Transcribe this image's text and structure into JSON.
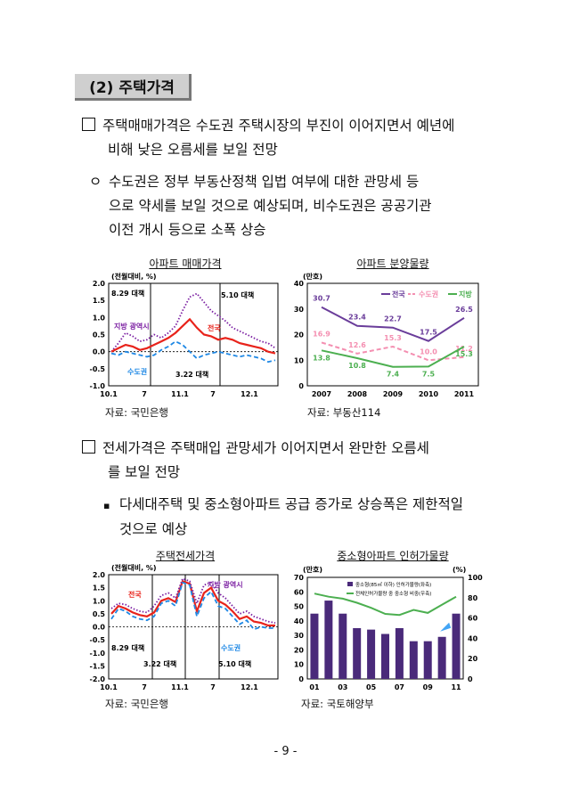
{
  "section_title": "(2) 주택가격",
  "b1": {
    "line1": "주택매매가격은 수도권 주택시장의 부진이 이어지면서 예년에",
    "line2": "비해 낮은 오름세를 보일 전망"
  },
  "b2": {
    "marker": "ㅇ",
    "line1": "수도권은 정부 부동산정책 입법 여부에 대한 관망세 등",
    "line2": "으로 약세를 보일 것으로 예상되며, 비수도권은 공공기관",
    "line3": "이전 개시 등으로 소폭 상승"
  },
  "b3": {
    "line1": "전세가격은 주택매입 관망세가 이어지면서 완만한 오름세",
    "line2": "를 보일 전망"
  },
  "b4": {
    "marker": "▪",
    "line1": "다세대주택 및 중소형아파트 공급 증가로 상승폭은 제한적일",
    "line2": "것으로 예상"
  },
  "page_number": "- 9 -",
  "chart_data": [
    {
      "type": "line",
      "title": "아파트 매매가격",
      "unit_label": "(전월대비, %)",
      "source": "자료: 국민은행",
      "ylim": [
        -1.0,
        2.0
      ],
      "yticks": [
        "2.0",
        "1.5",
        "1.0",
        "0.5",
        "0.0",
        "-0.5",
        "-1.0"
      ],
      "xticks": [
        "10.1",
        "7",
        "11.1",
        "7",
        "12.1"
      ],
      "annotations": [
        "8.29 대책",
        "5.10 대책",
        "3.22 대책"
      ],
      "series": [
        {
          "name": "지방 광역시",
          "color": "#7b1fa2",
          "style": "dotted",
          "values": [
            0.0,
            0.25,
            0.55,
            0.45,
            0.3,
            0.35,
            0.5,
            0.4,
            0.55,
            0.75,
            1.2,
            1.6,
            1.7,
            1.45,
            1.2,
            1.05,
            0.9,
            0.7,
            0.6,
            0.5,
            0.4,
            0.3,
            0.25,
            0.1
          ]
        },
        {
          "name": "전국",
          "color": "#e8231b",
          "style": "solid",
          "values": [
            0.0,
            0.1,
            0.2,
            0.15,
            0.05,
            0.1,
            0.2,
            0.3,
            0.4,
            0.55,
            0.75,
            0.95,
            0.7,
            0.5,
            0.45,
            0.35,
            0.4,
            0.35,
            0.25,
            0.2,
            0.15,
            0.1,
            0.0,
            -0.05
          ]
        },
        {
          "name": "수도권",
          "color": "#1e88e5",
          "style": "dashed",
          "values": [
            -0.05,
            -0.1,
            0.0,
            -0.05,
            -0.1,
            -0.15,
            -0.1,
            0.05,
            0.15,
            0.3,
            0.2,
            0.0,
            -0.2,
            -0.1,
            -0.05,
            0.0,
            -0.05,
            -0.1,
            -0.15,
            -0.1,
            -0.15,
            -0.2,
            -0.3,
            -0.25
          ]
        }
      ]
    },
    {
      "type": "line",
      "title": "아파트 분양물량",
      "unit_label": "(만호)",
      "source": "자료: 부동산114",
      "ylim": [
        0,
        40
      ],
      "yticks": [
        "40",
        "30",
        "20",
        "10",
        "0"
      ],
      "categories": [
        "2007",
        "2008",
        "2009",
        "2010",
        "2011"
      ],
      "series": [
        {
          "name": "전국",
          "color": "#6a3d9a",
          "style": "solid",
          "values": [
            30.7,
            23.4,
            22.7,
            17.5,
            26.5
          ],
          "labels": [
            "30.7",
            "23.4",
            "22.7",
            "17.5",
            "26.5"
          ]
        },
        {
          "name": "수도권",
          "color": "#f48fb1",
          "style": "dashed",
          "values": [
            16.9,
            12.6,
            15.3,
            10.0,
            11.2
          ],
          "labels": [
            "16.9",
            "12.6",
            "15.3",
            "10.0",
            "11.2"
          ]
        },
        {
          "name": "지방",
          "color": "#4caf50",
          "style": "solid",
          "values": [
            13.8,
            10.8,
            7.4,
            7.5,
            15.3
          ],
          "labels": [
            "13.8",
            "10.8",
            "7.4",
            "7.5",
            "15.3"
          ]
        }
      ]
    },
    {
      "type": "line",
      "title": "주택전세가격",
      "unit_label": "(전월대비, %)",
      "source": "자료: 국민은행",
      "ylim": [
        -2.0,
        2.0
      ],
      "yticks": [
        "2.0",
        "1.5",
        "1.0",
        "0.5",
        "0.0",
        "-0.5",
        "-1.0",
        "-1.5",
        "-2.0"
      ],
      "xticks": [
        "10.1",
        "7",
        "11.1",
        "7",
        "12.1"
      ],
      "annotations": [
        "8.29 대책",
        "3.22 대책",
        "5.10 대책"
      ],
      "series": [
        {
          "name": "전국",
          "color": "#e8231b",
          "style": "solid",
          "values": [
            0.5,
            0.8,
            0.7,
            0.55,
            0.45,
            0.4,
            0.55,
            1.0,
            1.1,
            0.95,
            1.75,
            1.65,
            0.6,
            1.3,
            1.5,
            1.0,
            0.85,
            0.6,
            0.3,
            0.4,
            0.2,
            0.15,
            0.05,
            0.05
          ]
        },
        {
          "name": "지방 광역시",
          "color": "#7b1fa2",
          "style": "dotted",
          "values": [
            0.7,
            0.9,
            0.85,
            0.7,
            0.6,
            0.55,
            0.8,
            1.2,
            1.3,
            1.1,
            1.85,
            1.75,
            0.9,
            1.6,
            1.7,
            1.3,
            1.1,
            0.8,
            0.5,
            0.6,
            0.4,
            0.3,
            0.2,
            0.15
          ]
        },
        {
          "name": "수도권",
          "color": "#1e88e5",
          "style": "dashed",
          "values": [
            0.3,
            0.7,
            0.6,
            0.4,
            0.3,
            0.25,
            0.4,
            0.9,
            1.0,
            0.8,
            1.7,
            1.6,
            0.4,
            1.1,
            1.35,
            0.8,
            0.7,
            0.4,
            0.1,
            0.25,
            -0.1,
            0.0,
            -0.05,
            -0.05
          ]
        }
      ]
    },
    {
      "type": "bar",
      "title": "중소형아파트 인허가물량",
      "unit_label": "(만호)",
      "unit_label_right": "(%)",
      "source": "자료: 국토해양부",
      "ylim": [
        0,
        70
      ],
      "ylim_right": [
        0,
        100
      ],
      "yticks": [
        "70",
        "60",
        "50",
        "40",
        "30",
        "20",
        "10",
        "0"
      ],
      "yticks_right": [
        "100",
        "80",
        "60",
        "40",
        "20",
        "0"
      ],
      "xticks": [
        "01",
        "03",
        "05",
        "07",
        "09",
        "11"
      ],
      "categories": [
        "01",
        "02",
        "03",
        "04",
        "05",
        "06",
        "07",
        "08",
        "09",
        "10",
        "11"
      ],
      "series": [
        {
          "name": "중소형(85㎡ 이하) 인허가물량(좌축)",
          "color": "#4a2a7a",
          "values": [
            45,
            54,
            45,
            35,
            34,
            31,
            35,
            26,
            26,
            29,
            45
          ]
        },
        {
          "name": "전체인허가물량 중 중소형 비중(우축)",
          "color": "#4caf50",
          "values": [
            84,
            81,
            79,
            75,
            70,
            64,
            63,
            68,
            65,
            73,
            81
          ]
        }
      ]
    }
  ]
}
